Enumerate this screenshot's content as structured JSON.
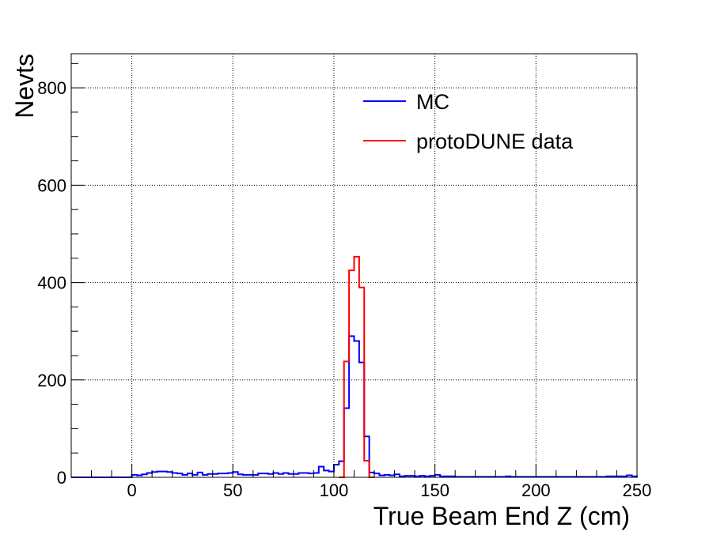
{
  "chart_data": {
    "type": "histogram",
    "xlabel": "True Beam End Z (cm)",
    "ylabel": "Nevts",
    "xlim": [
      -30,
      250
    ],
    "ylim": [
      0,
      870
    ],
    "x_ticks": [
      0,
      50,
      100,
      150,
      200,
      250
    ],
    "x_tick_labels": [
      "0",
      "50",
      "100",
      "150",
      "200",
      "250"
    ],
    "y_ticks": [
      0,
      200,
      400,
      600,
      800
    ],
    "y_tick_labels": [
      "0",
      "200",
      "400",
      "600",
      "800"
    ],
    "grid": true,
    "legend_position": "top-right",
    "bin_width": 2.5,
    "series": [
      {
        "name": "MC",
        "color": "#0000ff",
        "bins": [
          [
            0,
            5
          ],
          [
            2.5,
            4
          ],
          [
            5,
            6
          ],
          [
            7.5,
            9
          ],
          [
            10,
            11
          ],
          [
            12.5,
            12
          ],
          [
            15,
            12
          ],
          [
            17.5,
            11
          ],
          [
            20,
            9
          ],
          [
            22.5,
            8
          ],
          [
            25,
            5
          ],
          [
            27.5,
            8
          ],
          [
            30,
            5
          ],
          [
            32.5,
            10
          ],
          [
            35,
            5
          ],
          [
            37.5,
            7
          ],
          [
            40,
            7
          ],
          [
            42.5,
            8
          ],
          [
            45,
            8
          ],
          [
            47.5,
            9
          ],
          [
            50,
            11
          ],
          [
            52.5,
            6
          ],
          [
            55,
            5
          ],
          [
            57.5,
            5
          ],
          [
            60,
            5
          ],
          [
            62.5,
            8
          ],
          [
            65,
            8
          ],
          [
            67.5,
            7
          ],
          [
            70,
            9
          ],
          [
            72.5,
            7
          ],
          [
            75,
            9
          ],
          [
            77.5,
            7
          ],
          [
            80,
            7
          ],
          [
            82.5,
            9
          ],
          [
            85,
            9
          ],
          [
            87.5,
            8
          ],
          [
            90,
            9
          ],
          [
            92.5,
            22
          ],
          [
            95,
            14
          ],
          [
            97.5,
            12
          ],
          [
            100,
            26
          ],
          [
            102.5,
            33
          ],
          [
            105,
            142
          ],
          [
            107.5,
            290
          ],
          [
            110,
            280
          ],
          [
            112.5,
            236
          ],
          [
            115,
            84
          ],
          [
            117.5,
            10
          ],
          [
            120,
            8
          ],
          [
            122.5,
            4
          ],
          [
            125,
            5
          ],
          [
            127.5,
            4
          ],
          [
            130,
            6
          ],
          [
            132.5,
            2
          ],
          [
            135,
            3
          ],
          [
            137.5,
            3
          ],
          [
            140,
            2
          ],
          [
            142.5,
            3
          ],
          [
            145,
            2
          ],
          [
            147.5,
            3
          ],
          [
            150,
            5
          ],
          [
            152.5,
            2
          ],
          [
            155,
            2
          ],
          [
            157.5,
            2
          ],
          [
            160,
            1
          ],
          [
            162.5,
            1
          ],
          [
            165,
            1
          ],
          [
            167.5,
            1
          ],
          [
            170,
            1
          ],
          [
            172.5,
            1
          ],
          [
            175,
            1
          ],
          [
            177.5,
            1
          ],
          [
            180,
            1
          ],
          [
            182.5,
            1
          ],
          [
            185,
            2
          ],
          [
            187.5,
            1
          ],
          [
            190,
            1
          ],
          [
            192.5,
            1
          ],
          [
            195,
            1
          ],
          [
            197.5,
            1
          ],
          [
            200,
            1
          ],
          [
            202.5,
            1
          ],
          [
            205,
            1
          ],
          [
            207.5,
            1
          ],
          [
            210,
            1
          ],
          [
            212.5,
            1
          ],
          [
            215,
            1
          ],
          [
            217.5,
            1
          ],
          [
            220,
            1
          ],
          [
            222.5,
            1
          ],
          [
            225,
            1
          ],
          [
            227.5,
            1
          ],
          [
            230,
            1
          ],
          [
            232.5,
            1
          ],
          [
            235,
            2
          ],
          [
            237.5,
            2
          ],
          [
            240,
            2
          ],
          [
            242.5,
            2
          ],
          [
            245,
            4
          ],
          [
            247.5,
            2
          ]
        ]
      },
      {
        "name": "protoDUNE data",
        "color": "#ff0000",
        "bins": [
          [
            102.5,
            0
          ],
          [
            105,
            238
          ],
          [
            107.5,
            425
          ],
          [
            110,
            453
          ],
          [
            112.5,
            390
          ],
          [
            115,
            34
          ],
          [
            117.5,
            0
          ]
        ]
      }
    ]
  }
}
